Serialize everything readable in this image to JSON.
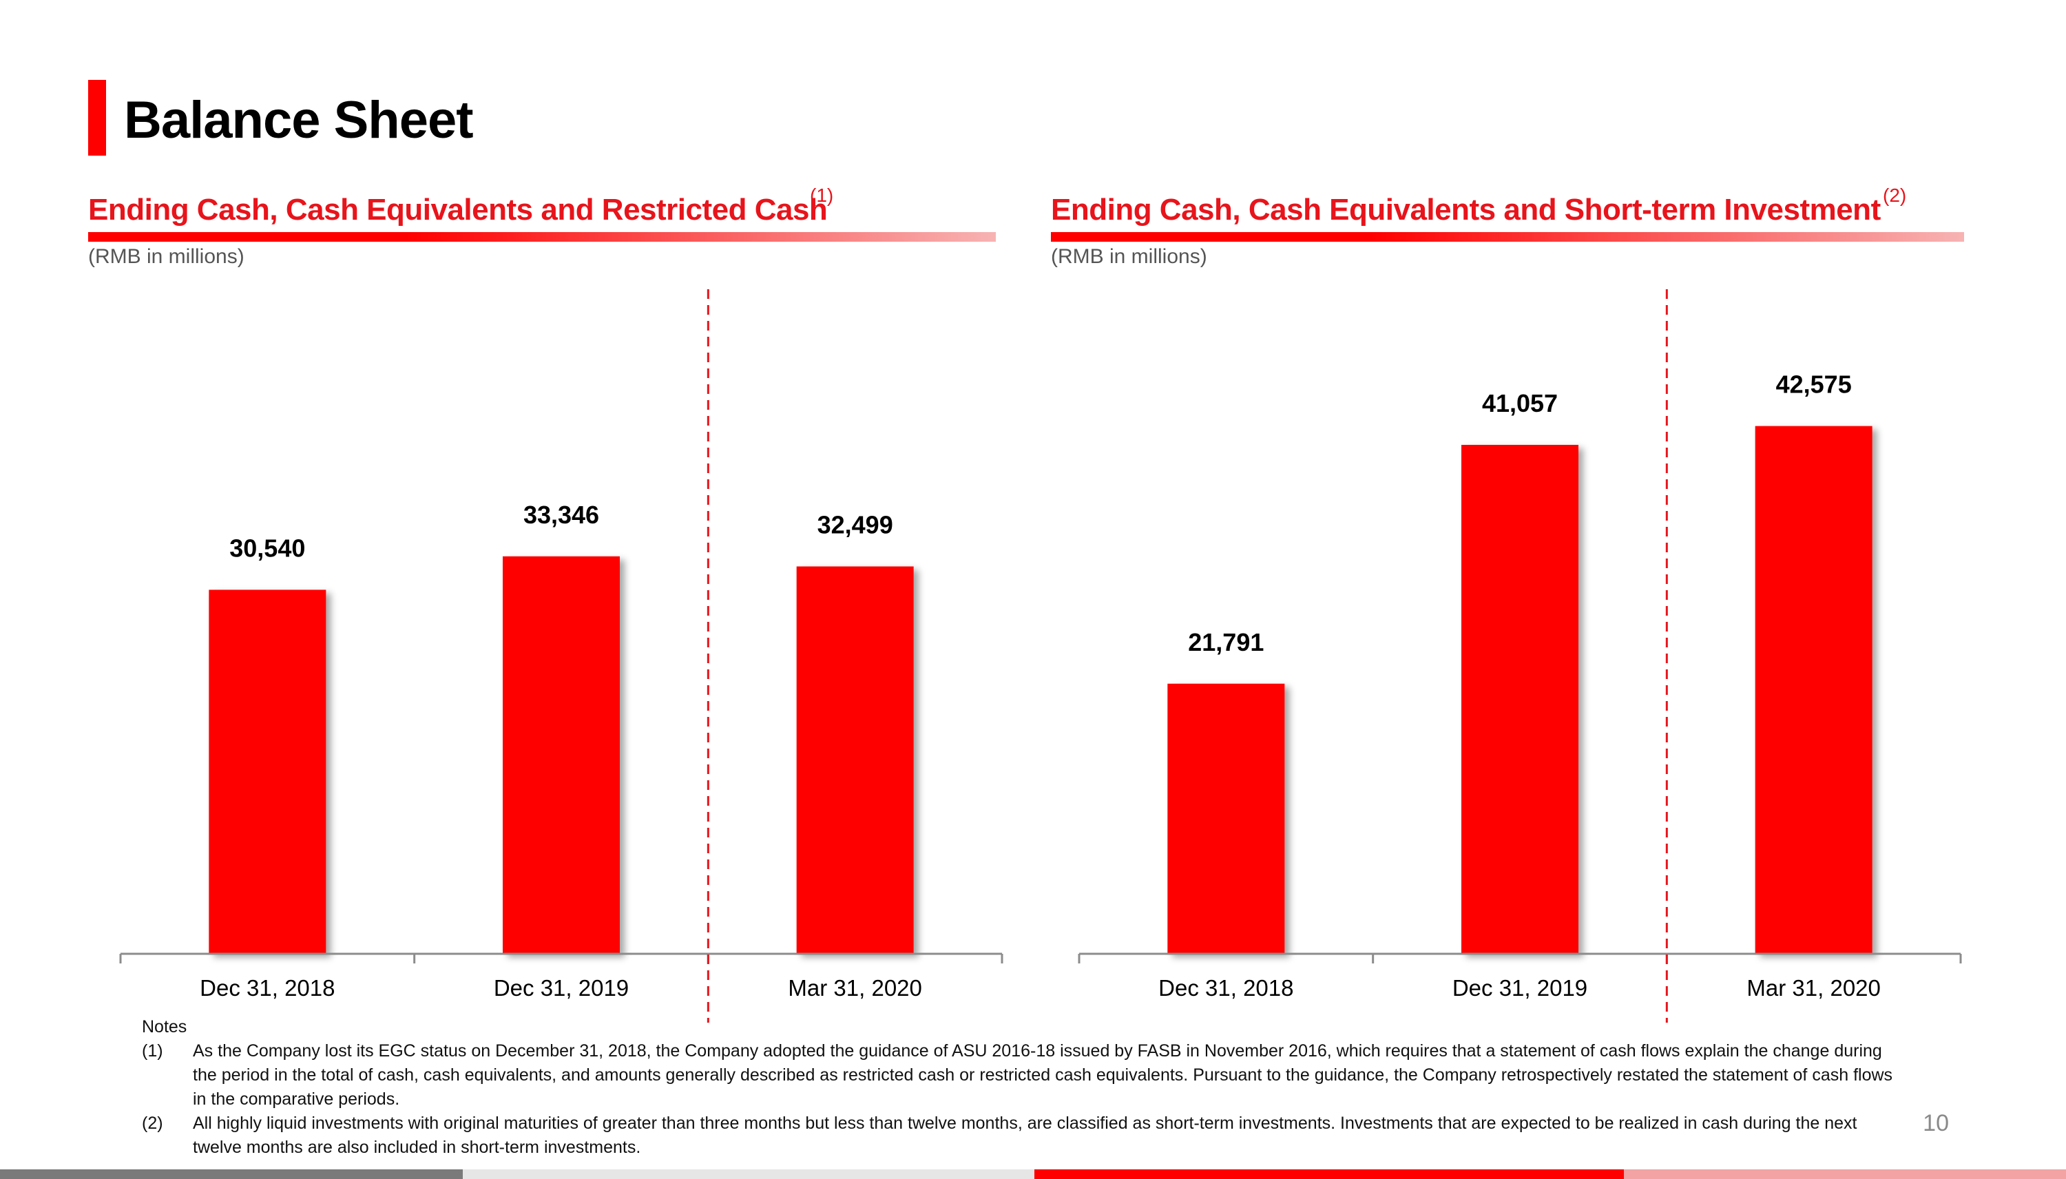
{
  "page": {
    "title": "Balance Sheet",
    "page_number": "10",
    "accent_color": "#ff0000",
    "section_title_color": "#e8141b"
  },
  "left_section": {
    "title": "Ending Cash, Cash Equivalents and Restricted Cash",
    "footnote": "(1)",
    "unit": "(RMB in millions)"
  },
  "right_section": {
    "title": "Ending Cash, Cash Equivalents and Short-term Investment",
    "footnote": "(2)",
    "unit": "(RMB in millions)"
  },
  "chart_data": [
    {
      "type": "bar",
      "title": "Ending Cash, Cash Equivalents and Restricted Cash",
      "ylabel": "RMB in millions",
      "categories": [
        "Dec 31, 2018",
        "Dec 31, 2019",
        "Mar 31, 2020"
      ],
      "values": [
        30540,
        33346,
        32499
      ],
      "data_labels": [
        "30,540",
        "33,346",
        "32,499"
      ],
      "ylim": [
        0,
        52000
      ],
      "bar_color": "#ff0000",
      "divider_after_category": 1
    },
    {
      "type": "bar",
      "title": "Ending Cash, Cash Equivalents and Short-term Investment",
      "ylabel": "RMB in millions",
      "categories": [
        "Dec 31, 2018",
        "Dec 31, 2019",
        "Mar 31, 2020"
      ],
      "values": [
        21791,
        41057,
        42575
      ],
      "data_labels": [
        "21,791",
        "41,057",
        "42,575"
      ],
      "ylim": [
        0,
        50000
      ],
      "bar_color": "#ff0000",
      "divider_after_category": 1
    }
  ],
  "notes": {
    "heading": "Notes",
    "items": [
      {
        "num": "(1)",
        "text": "As the Company lost its EGC status on December 31, 2018, the Company adopted the guidance of ASU 2016-18 issued by FASB in November 2016, which requires that a statement of cash flows explain the change during the period in the total of cash, cash equivalents, and amounts generally described as restricted cash or restricted cash equivalents. Pursuant to the guidance, the Company retrospectively restated the statement of cash flows in the comparative periods."
      },
      {
        "num": "(2)",
        "text": "All highly liquid investments with original maturities of greater than three months but less than twelve months, are classified as short-term investments. Investments that are expected to be realized in cash during the next twelve months are also included in short-term investments."
      }
    ]
  }
}
